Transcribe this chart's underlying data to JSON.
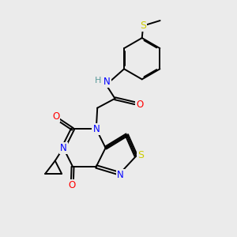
{
  "bg_color": "#ebebeb",
  "bond_color": "#000000",
  "bond_width": 1.4,
  "atom_colors": {
    "N": "#0000ff",
    "O": "#ff0000",
    "S": "#cccc00",
    "H": "#5a9a9a",
    "C": "#000000"
  },
  "font_size": 8.5
}
